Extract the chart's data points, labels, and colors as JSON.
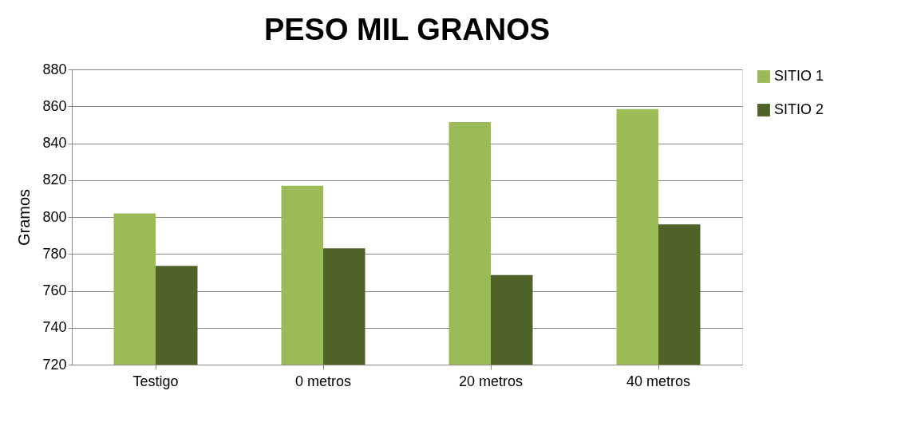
{
  "chart_data": {
    "type": "bar",
    "title": "PESO MIL GRANOS",
    "ylabel": "Gramos",
    "categories": [
      "Testigo",
      "0 metros",
      "20 metros",
      "40 metros"
    ],
    "series": [
      {
        "name": "SITIO 1",
        "color": "#9bbb59",
        "values": [
          802,
          817,
          851.5,
          858.5
        ]
      },
      {
        "name": "SITIO 2",
        "color": "#4f6228",
        "values": [
          773.5,
          783,
          768.5,
          796
        ]
      }
    ],
    "ylim": [
      720,
      880
    ],
    "yticks": [
      720,
      740,
      760,
      780,
      800,
      820,
      840,
      860,
      880
    ],
    "grid": "y",
    "legend": "right"
  }
}
